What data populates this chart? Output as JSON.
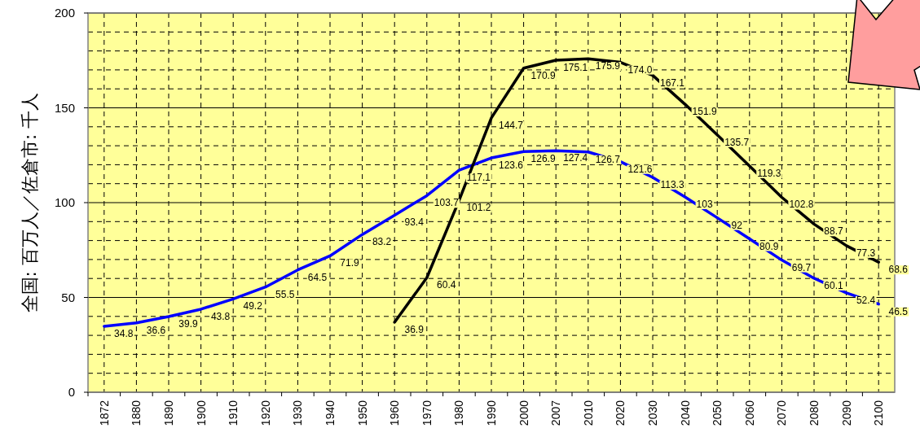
{
  "chart_data": {
    "type": "line",
    "ylabel": "全国: 百万人／佐倉市: 千人",
    "categories": [
      "1872",
      "1880",
      "1890",
      "1900",
      "1910",
      "1920",
      "1930",
      "1940",
      "1950",
      "1960",
      "1970",
      "1980",
      "1990",
      "2000",
      "2007",
      "2010",
      "2020",
      "2030",
      "2040",
      "2050",
      "2060",
      "2070",
      "2080",
      "2090",
      "2100"
    ],
    "series": [
      {
        "color": "#0000ff",
        "values": [
          34.8,
          36.6,
          39.9,
          43.8,
          49.2,
          55.5,
          64.5,
          71.9,
          83.2,
          93.4,
          103.7,
          117.1,
          123.6,
          126.9,
          127.4,
          126.7,
          121.6,
          113.3,
          103,
          92,
          80.9,
          69.7,
          60.1,
          52.4,
          46.5
        ],
        "value_labels": [
          "34.8",
          "36.6",
          "39.9",
          "43.8",
          "49.2",
          "55.5",
          "64.5",
          "71.9",
          "83.2",
          "93.4",
          "103.7",
          "117.1",
          "123.6",
          "126.9",
          "127.4",
          "126.7",
          "121.6",
          "113.3",
          "103",
          "92",
          "80.9",
          "69.7",
          "60.1",
          "52.4",
          "46.5"
        ]
      },
      {
        "color": "#000000",
        "values": [
          null,
          null,
          null,
          null,
          null,
          null,
          null,
          null,
          null,
          36.9,
          60.4,
          101.2,
          144.7,
          170.9,
          175.1,
          175.9,
          174.0,
          167.1,
          151.9,
          135.7,
          119.3,
          102.8,
          88.7,
          77.3,
          68.6
        ],
        "value_labels": [
          null,
          null,
          null,
          null,
          null,
          null,
          null,
          null,
          null,
          "36.9",
          "60.4",
          "101.2",
          "144.7",
          "170.9",
          "175.1",
          "175.9",
          "174.0",
          "167.1",
          "151.9",
          "135.7",
          "119.3",
          "102.8",
          "88.7",
          "77.3",
          "68.6"
        ]
      }
    ],
    "ylim": [
      0,
      200
    ],
    "yticks": [
      0,
      50,
      100,
      150,
      200
    ],
    "grid": true
  }
}
